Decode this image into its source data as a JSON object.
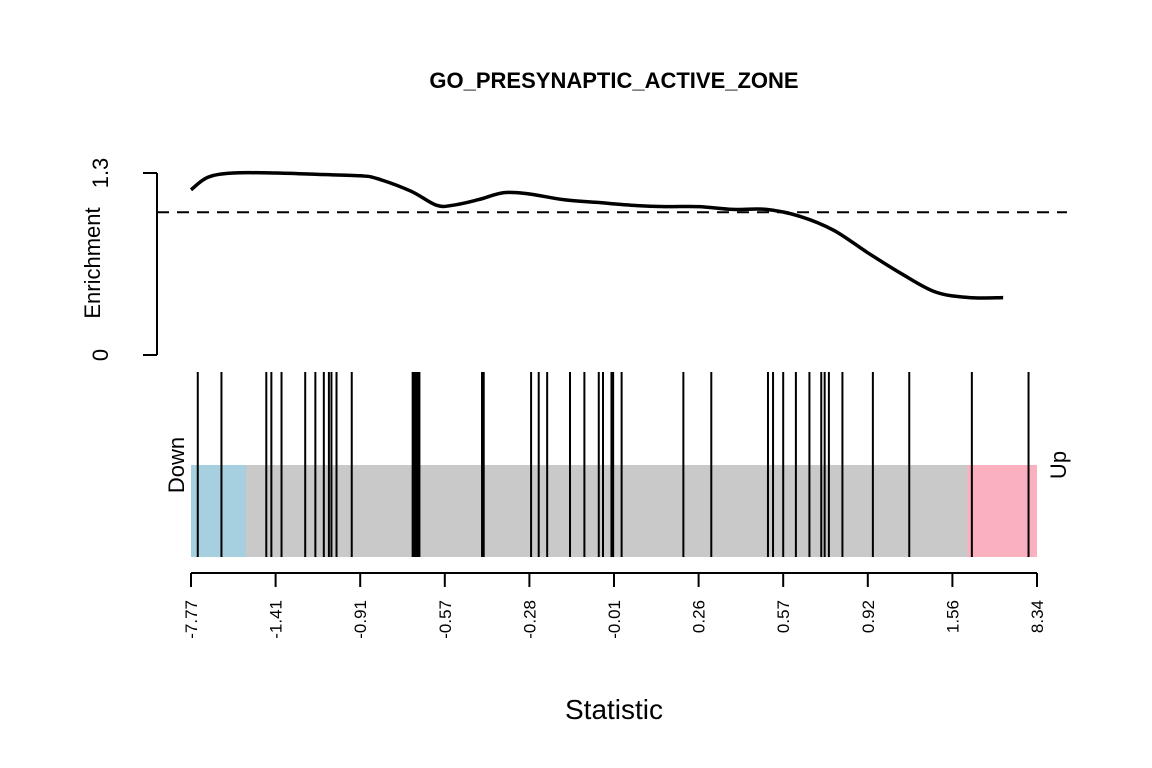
{
  "chart_data": {
    "type": "barcode",
    "title": "GO_PRESYNAPTIC_ACTIVE_ZONE",
    "xlabel": "Statistic",
    "enrichment": {
      "ylabel": "Enrichment",
      "ylim": [
        0,
        1.3
      ],
      "y_ticks": [
        "0",
        "1.3"
      ],
      "reference_line": 1.02,
      "curve": [
        [
          0.0,
          1.18
        ],
        [
          0.02,
          1.27
        ],
        [
          0.05,
          1.3
        ],
        [
          0.1,
          1.3
        ],
        [
          0.15,
          1.29
        ],
        [
          0.2,
          1.28
        ],
        [
          0.22,
          1.26
        ],
        [
          0.26,
          1.17
        ],
        [
          0.29,
          1.07
        ],
        [
          0.31,
          1.07
        ],
        [
          0.34,
          1.11
        ],
        [
          0.37,
          1.16
        ],
        [
          0.4,
          1.15
        ],
        [
          0.44,
          1.11
        ],
        [
          0.48,
          1.09
        ],
        [
          0.52,
          1.07
        ],
        [
          0.56,
          1.06
        ],
        [
          0.6,
          1.06
        ],
        [
          0.64,
          1.04
        ],
        [
          0.68,
          1.04
        ],
        [
          0.72,
          0.99
        ],
        [
          0.76,
          0.89
        ],
        [
          0.8,
          0.73
        ],
        [
          0.84,
          0.58
        ],
        [
          0.88,
          0.45
        ],
        [
          0.92,
          0.41
        ],
        [
          0.96,
          0.41
        ]
      ]
    },
    "barcode": {
      "positions": [
        0.008,
        0.036,
        0.089,
        0.095,
        0.107,
        0.135,
        0.147,
        0.157,
        0.163,
        0.166,
        0.172,
        0.19,
        0.262,
        0.264,
        0.266,
        0.268,
        0.27,
        0.344,
        0.346,
        0.402,
        0.411,
        0.421,
        0.448,
        0.465,
        0.482,
        0.487,
        0.497,
        0.499,
        0.509,
        0.582,
        0.615,
        0.682,
        0.688,
        0.7,
        0.715,
        0.731,
        0.745,
        0.749,
        0.754,
        0.77,
        0.806,
        0.849,
        0.923,
        0.99
      ],
      "down_label": "Down",
      "up_label": "Up",
      "down_range": [
        0,
        0.065
      ],
      "up_range": [
        0.918,
        1.0
      ],
      "colors": {
        "down": "#a6cfe0",
        "up": "#fbb0c0",
        "middle": "#c9c9c9"
      }
    },
    "x_ticks": [
      "-7.77",
      "-1.41",
      "-0.91",
      "-0.57",
      "-0.28",
      "-0.01",
      "0.26",
      "0.57",
      "0.92",
      "1.56",
      "8.34"
    ]
  }
}
